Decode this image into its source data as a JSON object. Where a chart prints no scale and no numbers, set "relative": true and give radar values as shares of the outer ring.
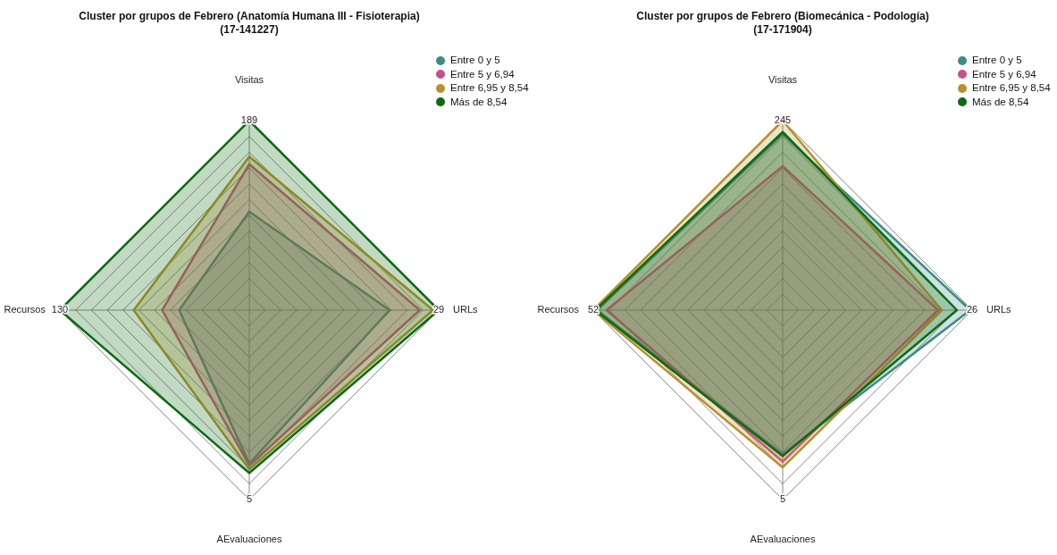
{
  "chart_data": [
    {
      "type": "radar",
      "title": "Cluster por grupos de Febrero (Anatomía Humana III - Fisioterapia)\n(17-141227)",
      "categories": [
        "Visitas",
        "URLs",
        "AEvaluaciones",
        "Recursos"
      ],
      "relative": true,
      "grid": true,
      "legend": "top right",
      "marker": "none",
      "annotations": [
        {
          "text": "189",
          "x": "Visitas"
        },
        {
          "text": "29",
          "x": "URLs"
        },
        {
          "text": "5",
          "x": "AEvaluaciones"
        },
        {
          "text": "130",
          "x": "Recursos"
        }
      ],
      "series": [
        {
          "name": "Entre 0 y 5",
          "color": "#3d8a86",
          "values": [
            0.52,
            0.74,
            0.81,
            0.37
          ]
        },
        {
          "name": "Entre 5 y 6,94",
          "color": "#c84e8a",
          "values": [
            0.77,
            0.9,
            0.82,
            0.46
          ]
        },
        {
          "name": "Entre 6,95 y 8,54",
          "color": "#b8902c",
          "values": [
            0.81,
            0.97,
            0.84,
            0.61
          ]
        },
        {
          "name": "Más de 8,54",
          "color": "#0b6b12",
          "values": [
            1,
            1,
            0.86,
            1
          ]
        }
      ]
    },
    {
      "type": "radar",
      "title": "Cluster por grupos de Febrero (Biomecánica - Podología)\n(17-171904)",
      "categories": [
        "Visitas",
        "URLs",
        "AEvaluaciones",
        "Recursos"
      ],
      "relative": true,
      "grid": true,
      "legend": "top right",
      "marker": "none",
      "annotations": [
        {
          "text": "245",
          "x": "Visitas"
        },
        {
          "text": "26",
          "x": "URLs"
        },
        {
          "text": "5",
          "x": "AEvaluaciones"
        },
        {
          "text": "52",
          "x": "Recursos"
        }
      ],
      "series": [
        {
          "name": "Entre 0 y 5",
          "color": "#3d8a86",
          "values": [
            0.93,
            0.99,
            0.76,
            0.98
          ]
        },
        {
          "name": "Entre 5 y 6,94",
          "color": "#c84e8a",
          "values": [
            0.76,
            0.82,
            0.8,
            0.93
          ]
        },
        {
          "name": "Entre 6,95 y 8,54",
          "color": "#b8902c",
          "values": [
            1,
            0.84,
            0.83,
            1
          ]
        },
        {
          "name": "Más de 8,54",
          "color": "#0b6b12",
          "values": [
            0.94,
            0.92,
            0.77,
            0.99
          ]
        }
      ]
    }
  ]
}
